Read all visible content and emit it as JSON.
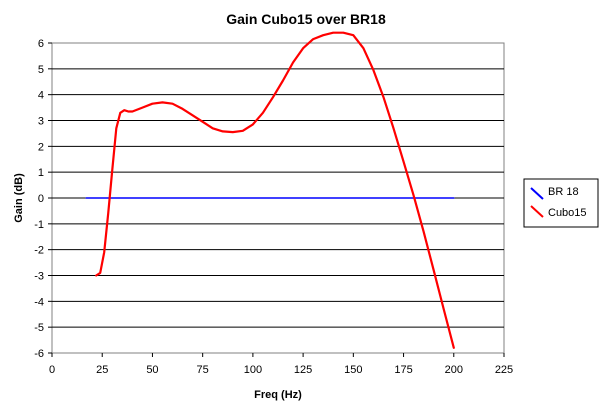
{
  "chart_data": {
    "type": "line",
    "title": "Gain Cubo15 over BR18",
    "xlabel": "Freq (Hz)",
    "ylabel": "Gain (dB)",
    "xlim": [
      0,
      225
    ],
    "ylim": [
      -6,
      6
    ],
    "x_ticks": [
      "0",
      "25",
      "50",
      "75",
      "100",
      "125",
      "150",
      "175",
      "200",
      "225"
    ],
    "y_ticks": [
      "6",
      "5",
      "4",
      "3",
      "2",
      "1",
      "0",
      "-1",
      "-2",
      "-3",
      "-4",
      "-5",
      "-6"
    ],
    "grid": "horizontal",
    "legend_position": "right",
    "series": [
      {
        "name": "BR 18",
        "color": "#0000ff",
        "x": [
          17,
          200
        ],
        "y": [
          0,
          0
        ]
      },
      {
        "name": "Cubo15",
        "color": "#ff0000",
        "x": [
          22,
          24,
          26,
          28,
          30,
          32,
          34,
          36,
          38,
          40,
          45,
          50,
          55,
          60,
          65,
          70,
          75,
          80,
          85,
          90,
          95,
          100,
          105,
          110,
          115,
          120,
          125,
          130,
          135,
          140,
          145,
          150,
          155,
          160,
          165,
          170,
          175,
          180,
          185,
          190,
          195,
          200
        ],
        "y": [
          -3.0,
          -2.9,
          -2.1,
          -0.6,
          1.1,
          2.7,
          3.3,
          3.4,
          3.35,
          3.35,
          3.5,
          3.65,
          3.7,
          3.65,
          3.45,
          3.2,
          2.95,
          2.7,
          2.58,
          2.55,
          2.6,
          2.85,
          3.3,
          3.9,
          4.55,
          5.25,
          5.8,
          6.15,
          6.3,
          6.4,
          6.4,
          6.3,
          5.8,
          4.95,
          3.9,
          2.7,
          1.4,
          0.1,
          -1.3,
          -2.8,
          -4.3,
          -5.8
        ]
      }
    ]
  }
}
